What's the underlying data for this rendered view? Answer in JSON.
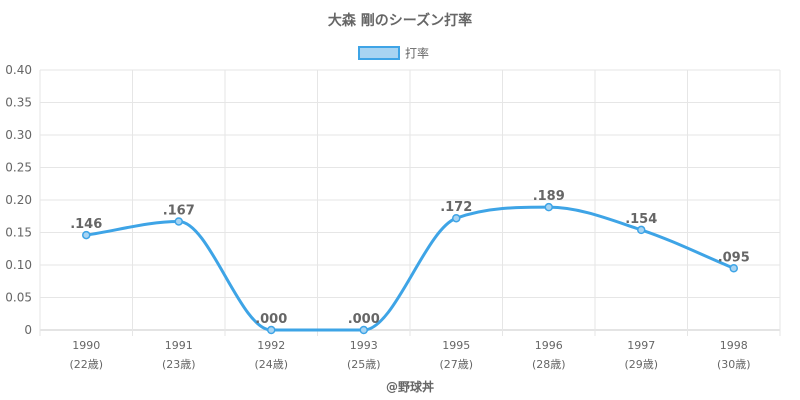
{
  "chart_data": {
    "type": "line",
    "title": "大森 剛のシーズン打率",
    "legend": {
      "position": "top-center",
      "label": "打率"
    },
    "categories": [
      "1990",
      "1991",
      "1992",
      "1993",
      "1995",
      "1996",
      "1997",
      "1998"
    ],
    "category_sublabels": [
      "(22歳)",
      "(23歳)",
      "(24歳)",
      "(25歳)",
      "(27歳)",
      "(28歳)",
      "(29歳)",
      "(30歳)"
    ],
    "series": [
      {
        "name": "打率",
        "values": [
          0.146,
          0.167,
          0.0,
          0.0,
          0.172,
          0.189,
          0.154,
          0.095
        ],
        "data_labels": [
          ".146",
          ".167",
          ".000",
          ".000",
          ".172",
          ".189",
          ".154",
          ".095"
        ]
      }
    ],
    "ylim": [
      0,
      0.4
    ],
    "yticks": [
      "0",
      "0.05",
      "0.10",
      "0.15",
      "0.20",
      "0.25",
      "0.30",
      "0.35",
      "0.40"
    ],
    "ytick_values": [
      0,
      0.05,
      0.1,
      0.15,
      0.2,
      0.25,
      0.3,
      0.35,
      0.4
    ],
    "grid": true,
    "xlabel": "",
    "ylabel": "",
    "colors": {
      "line": "#3ea4e6",
      "fill": "#a8d4f2",
      "grid": "#e6e6e6",
      "axis": "#c8c8c8",
      "text": "#666666"
    }
  },
  "credit": "@野球丼"
}
